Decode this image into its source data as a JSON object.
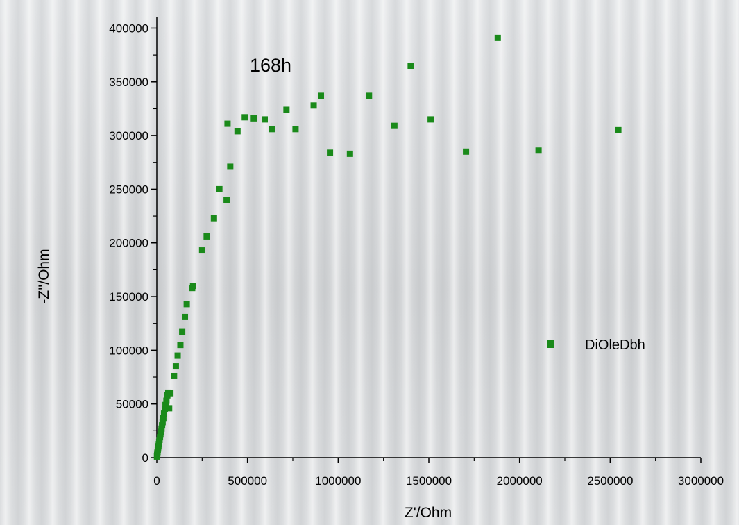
{
  "chart_data": {
    "type": "scatter",
    "annotation": "168h",
    "xlabel": "Z'/Ohm",
    "ylabel": "-Z''/Ohm",
    "xlim": [
      0,
      3000000
    ],
    "ylim": [
      0,
      410000
    ],
    "xticks": [
      0,
      500000,
      1000000,
      1500000,
      2000000,
      2500000,
      3000000
    ],
    "xtick_labels": [
      "0",
      "500000",
      "1000000",
      "1500000",
      "2000000",
      "2500000",
      "3000000"
    ],
    "yticks": [
      0,
      50000,
      100000,
      150000,
      200000,
      250000,
      300000,
      350000,
      400000
    ],
    "ytick_labels": [
      "0",
      "50000",
      "100000",
      "150000",
      "200000",
      "250000",
      "300000",
      "350000",
      "400000"
    ],
    "grid": false,
    "legend_position": "middle-right",
    "series": [
      {
        "name": "DiOleDbh",
        "color": "#1a8a1a",
        "marker": "square",
        "x": [
          1000,
          2000,
          3000,
          4000,
          5500,
          7000,
          9000,
          11000,
          13000,
          15000,
          17500,
          20000,
          23000,
          26000,
          29000,
          32000,
          36000,
          40000,
          44000,
          48000,
          53000,
          58000,
          63000,
          68000,
          75000,
          95000,
          105000,
          115000,
          130000,
          140000,
          155000,
          165000,
          195000,
          200000,
          250000,
          275000,
          315000,
          345000,
          385000,
          390000,
          405000,
          445000,
          485000,
          535000,
          595000,
          635000,
          715000,
          765000,
          865000,
          905000,
          955000,
          1065000,
          1170000,
          1310000,
          1400000,
          1510000,
          1705000,
          1880000,
          2105000,
          2545000
        ],
        "y": [
          1000,
          2500,
          4000,
          5500,
          7000,
          8500,
          10500,
          12500,
          14500,
          16500,
          19000,
          21500,
          24000,
          27000,
          30000,
          33000,
          37000,
          41000,
          45000,
          49000,
          53000,
          58000,
          60500,
          46000,
          60000,
          76000,
          85000,
          95000,
          105000,
          117000,
          131000,
          143000,
          158000,
          160000,
          193000,
          206000,
          223000,
          250000,
          240000,
          311000,
          271000,
          304000,
          317000,
          316000,
          315000,
          306000,
          324000,
          306000,
          328000,
          337000,
          284000,
          283000,
          337000,
          309000,
          365000,
          315000,
          285000,
          391000,
          286000,
          305000
        ]
      }
    ]
  }
}
